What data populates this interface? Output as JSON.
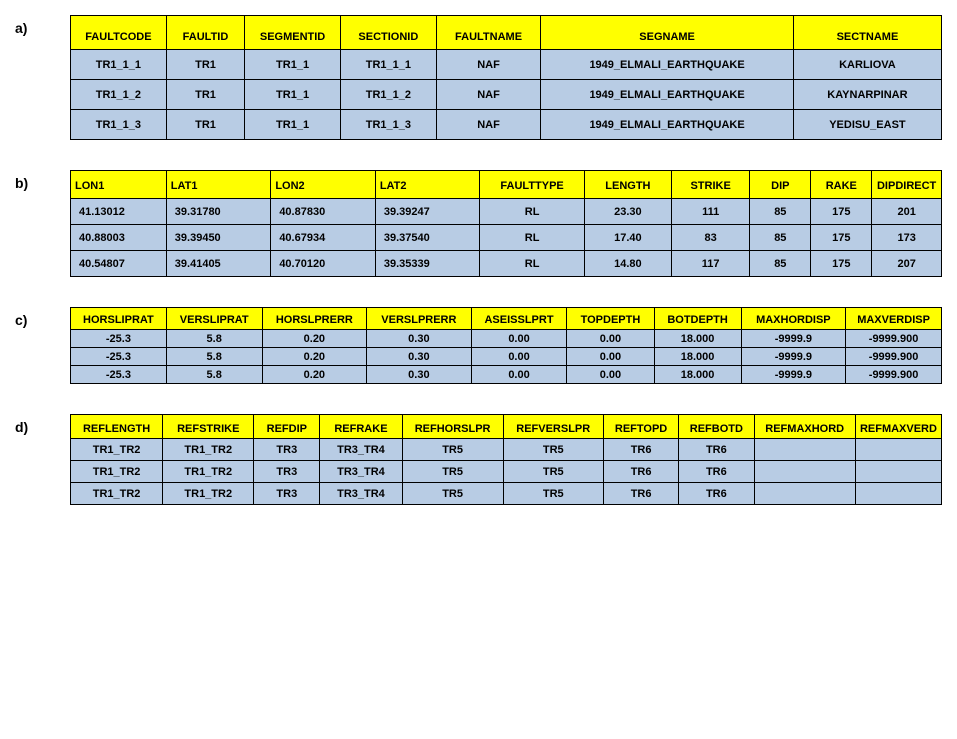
{
  "labels": {
    "a": "a)",
    "b": "b)",
    "c": "c)",
    "d": "d)"
  },
  "tableA": {
    "columns": [
      "FAULTCODE",
      "FAULTID",
      "SEGMENTID",
      "SECTIONID",
      "FAULTNAME",
      "SEGNAME",
      "SECTNAME"
    ],
    "widths": [
      "11%",
      "9%",
      "11%",
      "11%",
      "12%",
      "29%",
      "17%"
    ],
    "rows": [
      [
        "TR1_1_1",
        "TR1",
        "TR1_1",
        "TR1_1_1",
        "NAF",
        "1949_ELMALI_EARTHQUAKE",
        "KARLIOVA"
      ],
      [
        "TR1_1_2",
        "TR1",
        "TR1_1",
        "TR1_1_2",
        "NAF",
        "1949_ELMALI_EARTHQUAKE",
        "KAYNARPINAR"
      ],
      [
        "TR1_1_3",
        "TR1",
        "TR1_1",
        "TR1_1_3",
        "NAF",
        "1949_ELMALI_EARTHQUAKE",
        "YEDISU_EAST"
      ]
    ]
  },
  "tableB": {
    "columns": [
      "LON1",
      "LAT1",
      "LON2",
      "LAT2",
      "FAULTTYPE",
      "LENGTH",
      "STRIKE",
      "DIP",
      "RAKE",
      "DIPDIRECT"
    ],
    "widths": [
      "11%",
      "12%",
      "12%",
      "12%",
      "12%",
      "10%",
      "9%",
      "7%",
      "7%",
      "10%"
    ],
    "align": [
      "left",
      "left",
      "left",
      "left",
      "center",
      "center",
      "center",
      "center",
      "center",
      "center"
    ],
    "rows": [
      [
        "41.13012",
        "39.31780",
        "40.87830",
        "39.39247",
        "RL",
        "23.30",
        "111",
        "85",
        "175",
        "201"
      ],
      [
        "40.88003",
        "39.39450",
        "40.67934",
        "39.37540",
        "RL",
        "17.40",
        "83",
        "85",
        "175",
        "173"
      ],
      [
        "40.54807",
        "39.41405",
        "40.70120",
        "39.35339",
        "RL",
        "14.80",
        "117",
        "85",
        "175",
        "207"
      ]
    ]
  },
  "tableC": {
    "columns": [
      "HORSLIPRAT",
      "VERSLIPRAT",
      "HORSLPRERR",
      "VERSLPRERR",
      "ASEISSLPRT",
      "TOPDEPTH",
      "BOTDEPTH",
      "MAXHORDISP",
      "MAXVERDISP"
    ],
    "widths": [
      "11%",
      "11%",
      "12%",
      "12%",
      "11%",
      "10%",
      "10%",
      "12%",
      "11%"
    ],
    "rows": [
      [
        "-25.3",
        "5.8",
        "0.20",
        "0.30",
        "0.00",
        "0.00",
        "18.000",
        "-9999.9",
        "-9999.900"
      ],
      [
        "-25.3",
        "5.8",
        "0.20",
        "0.30",
        "0.00",
        "0.00",
        "18.000",
        "-9999.9",
        "-9999.900"
      ],
      [
        "-25.3",
        "5.8",
        "0.20",
        "0.30",
        "0.00",
        "0.00",
        "18.000",
        "-9999.9",
        "-9999.900"
      ]
    ]
  },
  "tableD": {
    "columns": [
      "REFLENGTH",
      "REFSTRIKE",
      "REFDIP",
      "REFRAKE",
      "REFHORSLPR",
      "REFVERSLPR",
      "REFTOPD",
      "REFBOTD",
      "REFMAXHORD",
      "REFMAXVERD"
    ],
    "widths": [
      "11%",
      "11%",
      "8%",
      "10%",
      "12%",
      "12%",
      "9%",
      "9%",
      "12%",
      "12%"
    ],
    "rows": [
      [
        "TR1_TR2",
        "TR1_TR2",
        "TR3",
        "TR3_TR4",
        "TR5",
        "TR5",
        "TR6",
        "TR6",
        "",
        ""
      ],
      [
        "TR1_TR2",
        "TR1_TR2",
        "TR3",
        "TR3_TR4",
        "TR5",
        "TR5",
        "TR6",
        "TR6",
        "",
        ""
      ],
      [
        "TR1_TR2",
        "TR1_TR2",
        "TR3",
        "TR3_TR4",
        "TR5",
        "TR5",
        "TR6",
        "TR6",
        "",
        ""
      ]
    ]
  },
  "colors": {
    "header_bg": "#ffff00",
    "cell_bg": "#b8cce4",
    "border": "#000000",
    "page_bg": "#ffffff",
    "text": "#000000"
  }
}
